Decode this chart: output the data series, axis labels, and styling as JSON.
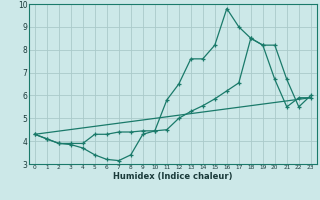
{
  "xlabel": "Humidex (Indice chaleur)",
  "bg_color": "#cce8e8",
  "grid_color": "#aacaca",
  "line_color": "#1a7a6a",
  "xlim": [
    -0.5,
    23.5
  ],
  "ylim": [
    3,
    10
  ],
  "xticks": [
    0,
    1,
    2,
    3,
    4,
    5,
    6,
    7,
    8,
    9,
    10,
    11,
    12,
    13,
    14,
    15,
    16,
    17,
    18,
    19,
    20,
    21,
    22,
    23
  ],
  "yticks": [
    3,
    4,
    5,
    6,
    7,
    8,
    9,
    10
  ],
  "line1_x": [
    0,
    1,
    2,
    3,
    4,
    5,
    6,
    7,
    8,
    9,
    10,
    11,
    12,
    13,
    14,
    15,
    16,
    17,
    18,
    19,
    20,
    21,
    22,
    23
  ],
  "line1_y": [
    4.3,
    4.1,
    3.9,
    3.85,
    3.7,
    3.4,
    3.2,
    3.15,
    3.4,
    4.3,
    4.45,
    5.8,
    6.5,
    7.6,
    7.6,
    8.2,
    9.8,
    9.0,
    8.5,
    8.2,
    6.7,
    5.5,
    5.9,
    5.9
  ],
  "line2_x": [
    0,
    1,
    2,
    3,
    4,
    5,
    6,
    7,
    8,
    9,
    10,
    11,
    12,
    13,
    14,
    15,
    16,
    17,
    18,
    19,
    20,
    21,
    22,
    23
  ],
  "line2_y": [
    4.3,
    4.1,
    3.9,
    3.9,
    3.9,
    4.3,
    4.3,
    4.4,
    4.4,
    4.45,
    4.45,
    4.5,
    5.0,
    5.3,
    5.55,
    5.85,
    6.2,
    6.55,
    8.5,
    8.2,
    8.2,
    6.7,
    5.5,
    6.0
  ],
  "line3_x": [
    0,
    23
  ],
  "line3_y": [
    4.3,
    5.9
  ]
}
